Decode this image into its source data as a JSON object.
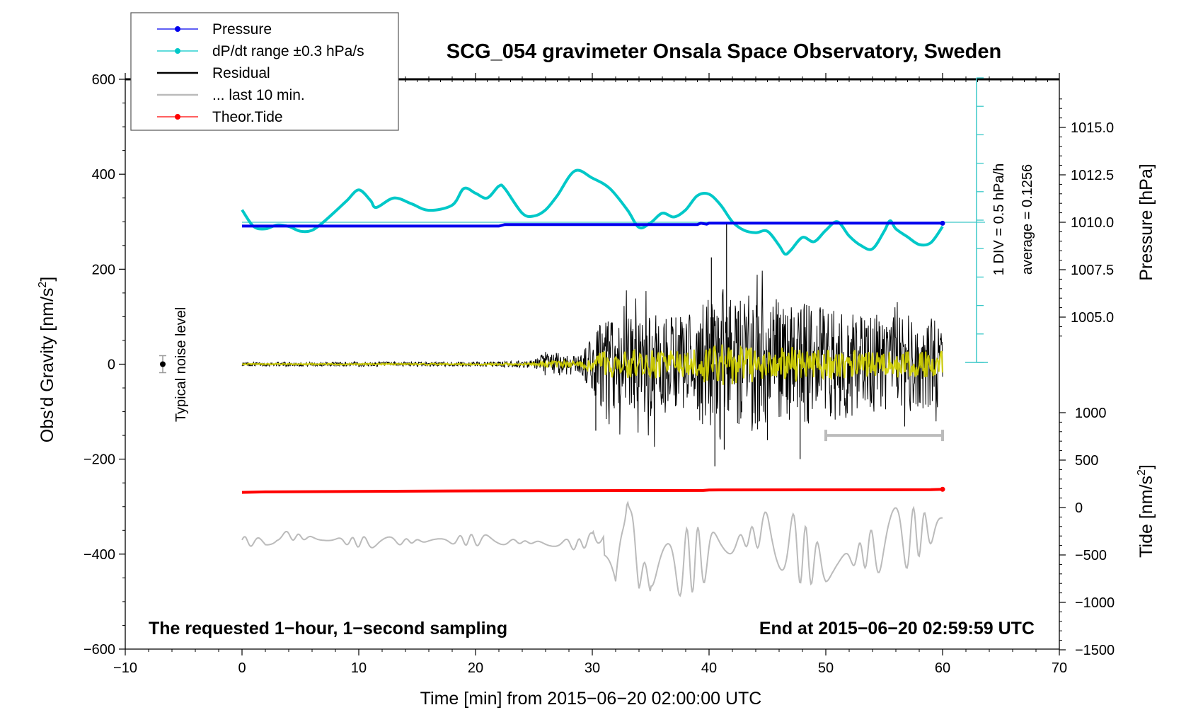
{
  "chart_data": {
    "type": "line",
    "title": "SCG_054 gravimeter Onsala Space Observatory, Sweden",
    "xlabel": "Time [min] from 2015−06−20 02:00:00 UTC",
    "ylabel_left": "Obs'd Gravity [nm/s",
    "ylabel_left_sup": "2",
    "ylabel_left_close": "]",
    "ylabel_right_top": "Pressure [hPa]",
    "ylabel_right_bottom": "Tide [nm/s",
    "ylabel_right_bottom_sup": "2",
    "ylabel_right_bottom_close": "]",
    "xlim": [
      -10,
      70
    ],
    "ylim": [
      -600,
      600
    ],
    "x_ticks": [
      "−10",
      "0",
      "10",
      "20",
      "30",
      "40",
      "50",
      "60",
      "70"
    ],
    "y_ticks": [
      "−600",
      "−400",
      "−200",
      "0",
      "200",
      "400",
      "600"
    ],
    "pressure_ticks": [
      "1015.0",
      "1012.5",
      "1010.0",
      "1007.5",
      "1005.0"
    ],
    "tide_ticks": [
      "1000",
      "500",
      "0",
      "−500",
      "−1000",
      "−1500"
    ],
    "legend": [
      {
        "label": "Pressure",
        "color": "#0000ee",
        "marker": true
      },
      {
        "label": "dP/dt range ±0.3 hPa/s",
        "color": "#00c8c8",
        "marker": true
      },
      {
        "label": "Residual",
        "color": "#000000",
        "marker": false
      },
      {
        "label": "... last 10 min.",
        "color": "#bbbbbb",
        "marker": false
      },
      {
        "label": "Theor.Tide",
        "color": "#ff0000",
        "marker": true
      }
    ],
    "annotations": {
      "bottom_left": "The requested 1−hour, 1−second sampling",
      "bottom_right": "End at 2015−06−20 02:59:59 UTC",
      "noise_label": "Typical noise level",
      "scale_div": "1 DIV = 0.5 hPa/h",
      "scale_avg": "average = 0.1256"
    },
    "series": [
      {
        "name": "Pressure",
        "unit": "hPa",
        "color": "#0000ee",
        "points": [
          [
            0,
            1009.8
          ],
          [
            1,
            1009.8
          ],
          [
            2,
            1009.8
          ],
          [
            10,
            1009.8
          ],
          [
            22,
            1009.8
          ],
          [
            22.5,
            1009.88
          ],
          [
            39,
            1009.88
          ],
          [
            39.3,
            1009.95
          ],
          [
            39.8,
            1009.9
          ],
          [
            40,
            1009.95
          ],
          [
            50,
            1009.95
          ],
          [
            60,
            1009.95
          ]
        ]
      },
      {
        "name": "dP/dt",
        "unit": "nm/s2 axis",
        "color": "#00c8c8",
        "points": [
          [
            0,
            325
          ],
          [
            1,
            290
          ],
          [
            2,
            285
          ],
          [
            3,
            293
          ],
          [
            4,
            290
          ],
          [
            5,
            280
          ],
          [
            6,
            282
          ],
          [
            7,
            300
          ],
          [
            8,
            322
          ],
          [
            9,
            345
          ],
          [
            10,
            367
          ],
          [
            11,
            345
          ],
          [
            11.5,
            330
          ],
          [
            13,
            350
          ],
          [
            14.5,
            338
          ],
          [
            16,
            324
          ],
          [
            18,
            335
          ],
          [
            19,
            370
          ],
          [
            20,
            360
          ],
          [
            21,
            350
          ],
          [
            22,
            375
          ],
          [
            22.5,
            370
          ],
          [
            24,
            318
          ],
          [
            25,
            312
          ],
          [
            26,
            325
          ],
          [
            27,
            355
          ],
          [
            28.5,
            407
          ],
          [
            30,
            392
          ],
          [
            31.5,
            370
          ],
          [
            33,
            325
          ],
          [
            34,
            288
          ],
          [
            35,
            298
          ],
          [
            36,
            318
          ],
          [
            37,
            310
          ],
          [
            38,
            325
          ],
          [
            39,
            355
          ],
          [
            40,
            358
          ],
          [
            41,
            335
          ],
          [
            42,
            300
          ],
          [
            43,
            282
          ],
          [
            44,
            277
          ],
          [
            45,
            280
          ],
          [
            46,
            250
          ],
          [
            46.5,
            232
          ],
          [
            47,
            240
          ],
          [
            48,
            267
          ],
          [
            49,
            258
          ],
          [
            50,
            282
          ],
          [
            51,
            300
          ],
          [
            52,
            270
          ],
          [
            53,
            250
          ],
          [
            54,
            243
          ],
          [
            55,
            280
          ],
          [
            55.5,
            302
          ],
          [
            56,
            285
          ],
          [
            57,
            268
          ],
          [
            58,
            252
          ],
          [
            59,
            256
          ],
          [
            60,
            290
          ]
        ]
      },
      {
        "name": "Theor.Tide",
        "unit": "nm/s2",
        "color": "#ff0000",
        "points": [
          [
            0,
            160
          ],
          [
            2,
            165
          ],
          [
            10,
            170
          ],
          [
            20,
            175
          ],
          [
            30,
            178
          ],
          [
            39.5,
            180
          ],
          [
            40,
            185
          ],
          [
            59,
            188
          ],
          [
            60,
            192
          ]
        ]
      },
      {
        "name": "Residual",
        "unit": "nm/s2",
        "color": "#000000",
        "envelope": [
          [
            0,
            4
          ],
          [
            10,
            5
          ],
          [
            20,
            5
          ],
          [
            25,
            8
          ],
          [
            26,
            28
          ],
          [
            29,
            20
          ],
          [
            30,
            60
          ],
          [
            31,
            100
          ],
          [
            35,
            110
          ],
          [
            38,
            100
          ],
          [
            39,
            120
          ],
          [
            40,
            150
          ],
          [
            41,
            160
          ],
          [
            42,
            150
          ],
          [
            45,
            140
          ],
          [
            50,
            120
          ],
          [
            55,
            100
          ],
          [
            60,
            100
          ]
        ]
      },
      {
        "name": "... last 10 min.",
        "unit": "nm/s2",
        "color": "#bbbbbb",
        "points": [
          [
            0,
            -370
          ],
          [
            2,
            -380
          ],
          [
            3,
            -360
          ],
          [
            10,
            -375
          ],
          [
            20,
            -370
          ],
          [
            29,
            -380
          ],
          [
            31,
            -350
          ],
          [
            32,
            -500
          ],
          [
            33,
            -260
          ],
          [
            34,
            -450
          ],
          [
            40,
            -400
          ],
          [
            45,
            -350
          ],
          [
            50,
            -430
          ],
          [
            55,
            -380
          ],
          [
            60,
            -340
          ]
        ],
        "range_bar": [
          50,
          60
        ]
      }
    ]
  }
}
